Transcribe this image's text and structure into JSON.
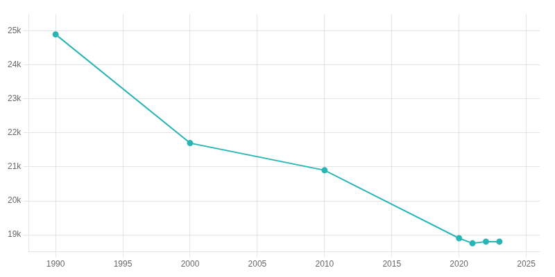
{
  "chart_data": {
    "type": "line",
    "x": [
      1990,
      2000,
      2010,
      2020,
      2021,
      2022,
      2023
    ],
    "values": [
      24900,
      21700,
      20900,
      18900,
      18750,
      18800,
      18800
    ],
    "color": "#2ab5b5",
    "marker": "circle",
    "xlim": [
      1988,
      2026
    ],
    "ylim": [
      18500,
      25500
    ],
    "xticks": [
      1990,
      1995,
      2000,
      2005,
      2010,
      2015,
      2020,
      2025
    ],
    "yticks": [
      {
        "value": 19000,
        "label": "19k"
      },
      {
        "value": 20000,
        "label": "20k"
      },
      {
        "value": 21000,
        "label": "21k"
      },
      {
        "value": 22000,
        "label": "22k"
      },
      {
        "value": 23000,
        "label": "23k"
      },
      {
        "value": 24000,
        "label": "24k"
      },
      {
        "value": 25000,
        "label": "25k"
      }
    ],
    "grid": true
  }
}
